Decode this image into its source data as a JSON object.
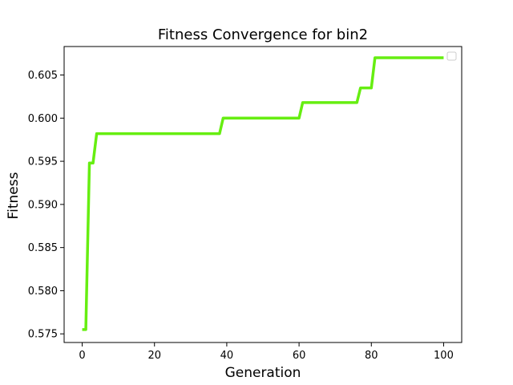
{
  "chart_data": {
    "type": "line",
    "title": "Fitness Convergence for bin2",
    "xlabel": "Generation",
    "ylabel": "Fitness",
    "xlim": [
      -5,
      105
    ],
    "ylim": [
      0.574,
      0.6083
    ],
    "x_ticks": [
      0,
      20,
      40,
      60,
      80,
      100
    ],
    "x_tick_labels": [
      "0",
      "20",
      "40",
      "60",
      "80",
      "100"
    ],
    "y_ticks": [
      0.575,
      0.58,
      0.585,
      0.59,
      0.595,
      0.6,
      0.605
    ],
    "y_tick_labels": [
      "0.575",
      "0.580",
      "0.585",
      "0.590",
      "0.595",
      "0.600",
      "0.605"
    ],
    "grid": false,
    "legend": {
      "placement": "top-right",
      "entries": []
    },
    "series": [
      {
        "color": "#66ee11",
        "x": [
          0,
          1,
          2,
          3,
          4,
          5,
          10,
          20,
          30,
          38,
          39,
          40,
          50,
          60,
          61,
          62,
          70,
          76,
          77,
          78,
          80,
          81,
          82,
          90,
          100
        ],
        "y": [
          0.5755,
          0.5755,
          0.5948,
          0.5948,
          0.5982,
          0.5982,
          0.5982,
          0.5982,
          0.5982,
          0.5982,
          0.6,
          0.6,
          0.6,
          0.6,
          0.6018,
          0.6018,
          0.6018,
          0.6018,
          0.6035,
          0.6035,
          0.6035,
          0.607,
          0.607,
          0.607,
          0.607
        ]
      }
    ]
  }
}
